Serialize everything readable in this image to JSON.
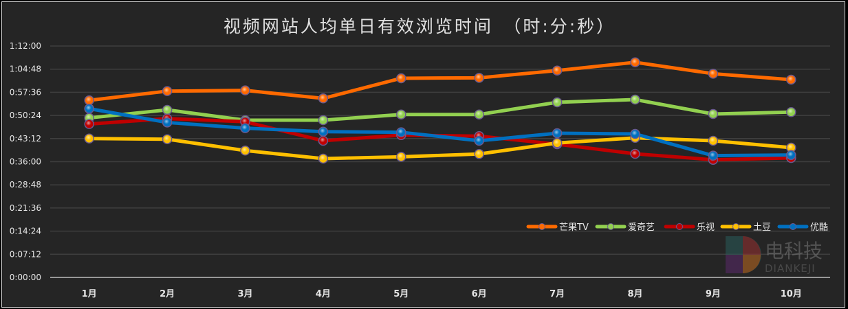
{
  "chart_data": {
    "type": "line",
    "title": "视频网站人均单日有效浏览时间　（时:分:秒）",
    "xlabel": "",
    "ylabel": "",
    "categories": [
      "1月",
      "2月",
      "3月",
      "4月",
      "5月",
      "6月",
      "7月",
      "8月",
      "9月",
      "10月"
    ],
    "y_ticks": [
      "0:00:00",
      "0:07:12",
      "0:14:24",
      "0:21:36",
      "0:28:48",
      "0:36:00",
      "0:43:12",
      "0:50:24",
      "0:57:36",
      "1:04:48",
      "1:12:00"
    ],
    "ylim": [
      "0:00:00",
      "1:12:00"
    ],
    "grid": true,
    "legend_position": "bottom-right",
    "series": [
      {
        "name": "芒果TV",
        "color": "#ff6a00",
        "values": [
          "0:55:06",
          "0:57:58",
          "0:58:11",
          "0:55:42",
          "1:01:58",
          "1:02:06",
          "1:04:22",
          "1:06:56",
          "1:03:23",
          "1:01:32"
        ]
      },
      {
        "name": "爱奇艺",
        "color": "#92d050",
        "values": [
          "0:49:38",
          "0:52:08",
          "0:48:56",
          "0:48:56",
          "0:50:42",
          "0:50:42",
          "0:54:29",
          "0:55:20",
          "0:50:51",
          "0:51:26"
        ]
      },
      {
        "name": "乐视",
        "color": "#c00000",
        "values": [
          "0:47:43",
          "0:49:25",
          "0:48:26",
          "0:42:31",
          "0:44:17",
          "0:43:57",
          "0:41:27",
          "0:38:27",
          "0:36:36",
          "0:37:11"
        ]
      },
      {
        "name": "土豆",
        "color": "#ffc000",
        "values": [
          "0:43:13",
          "0:43:00",
          "0:39:28",
          "0:36:58",
          "0:37:32",
          "0:38:24",
          "0:41:49",
          "0:43:26",
          "0:42:31",
          "0:40:23"
        ]
      },
      {
        "name": "优酷",
        "color": "#0070c0",
        "values": [
          "0:52:30",
          "0:48:13",
          "0:46:26",
          "0:45:21",
          "0:45:09",
          "0:42:31",
          "0:44:52",
          "0:44:39",
          "0:37:53",
          "0:38:05"
        ]
      }
    ]
  },
  "watermark": {
    "text": "电科技",
    "subtext": "DIANKEJI"
  }
}
